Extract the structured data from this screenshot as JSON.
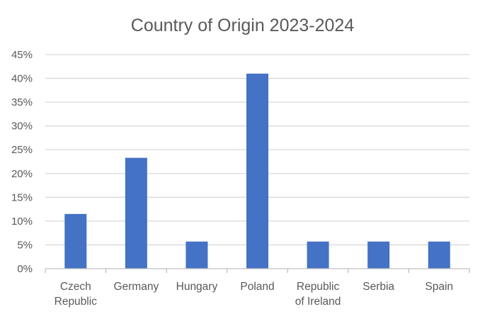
{
  "chart_data": {
    "type": "bar",
    "title": "Country of Origin 2023-2024",
    "xlabel": "",
    "ylabel": "",
    "categories": [
      [
        "Czech",
        "Republic"
      ],
      [
        "Germany"
      ],
      [
        "Hungary"
      ],
      [
        "Poland"
      ],
      [
        "Republic",
        "of Ireland"
      ],
      [
        "Serbia"
      ],
      [
        "Spain"
      ]
    ],
    "values": [
      11.5,
      23.3,
      5.7,
      41,
      5.7,
      5.7,
      5.7
    ],
    "value_unit": "%",
    "ylim": [
      0,
      45
    ],
    "yticks": [
      "0%",
      "5%",
      "10%",
      "15%",
      "20%",
      "25%",
      "30%",
      "35%",
      "40%",
      "45%"
    ],
    "ytick_values": [
      0,
      5,
      10,
      15,
      20,
      25,
      30,
      35,
      40,
      45
    ],
    "grid": true,
    "legend": "none",
    "colors": {
      "bar": "#4472C4",
      "grid": "#D9D9D9",
      "axis": "#BFBFBF",
      "text": "#595959"
    }
  }
}
